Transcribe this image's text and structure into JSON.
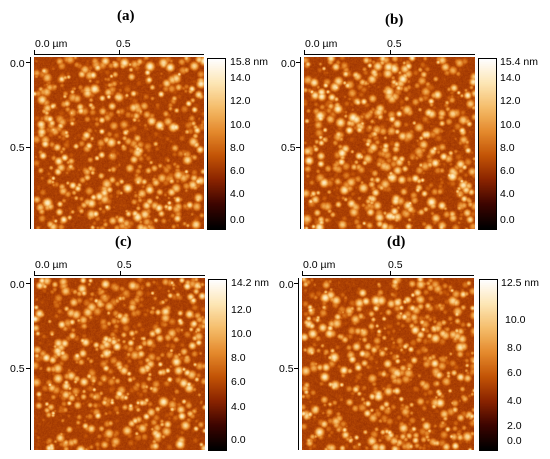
{
  "colormap": [
    "#000000",
    "#3d0500",
    "#8a2400",
    "#c35406",
    "#e58a2d",
    "#f5bd6a",
    "#fde6b4",
    "#ffffff"
  ],
  "panels": [
    {
      "label": "(a)",
      "x_ticks": [
        "0.0 µm",
        "0.5"
      ],
      "y_ticks": [
        "0.0",
        "0.5"
      ],
      "colorbar_max_label": "15.8 nm",
      "colorbar_ticks": [
        "14.0",
        "12.0",
        "10.0",
        "8.0",
        "6.0",
        "4.0",
        "0.0"
      ],
      "seed": 11
    },
    {
      "label": "(b)",
      "x_ticks": [
        "0.0 µm",
        "0.5"
      ],
      "y_ticks": [
        "0.0",
        "0.5"
      ],
      "colorbar_max_label": "15.4 nm",
      "colorbar_ticks": [
        "14.0",
        "12.0",
        "10.0",
        "8.0",
        "6.0",
        "4.0",
        "0.0"
      ],
      "seed": 23
    },
    {
      "label": "(c)",
      "x_ticks": [
        "0.0 µm",
        "0.5"
      ],
      "y_ticks": [
        "0.0",
        "0.5"
      ],
      "colorbar_max_label": "14.2 nm",
      "colorbar_ticks": [
        "12.0",
        "10.0",
        "8.0",
        "6.0",
        "4.0",
        "0.0"
      ],
      "seed": 37
    },
    {
      "label": "(d)",
      "x_ticks": [
        "0.0 µm",
        "0.5"
      ],
      "y_ticks": [
        "0.0",
        "0.5"
      ],
      "colorbar_max_label": "12.5 nm",
      "colorbar_ticks": [
        "10.0",
        "8.0",
        "6.0",
        "4.0",
        "2.0",
        "0.0"
      ],
      "seed": 53
    }
  ]
}
